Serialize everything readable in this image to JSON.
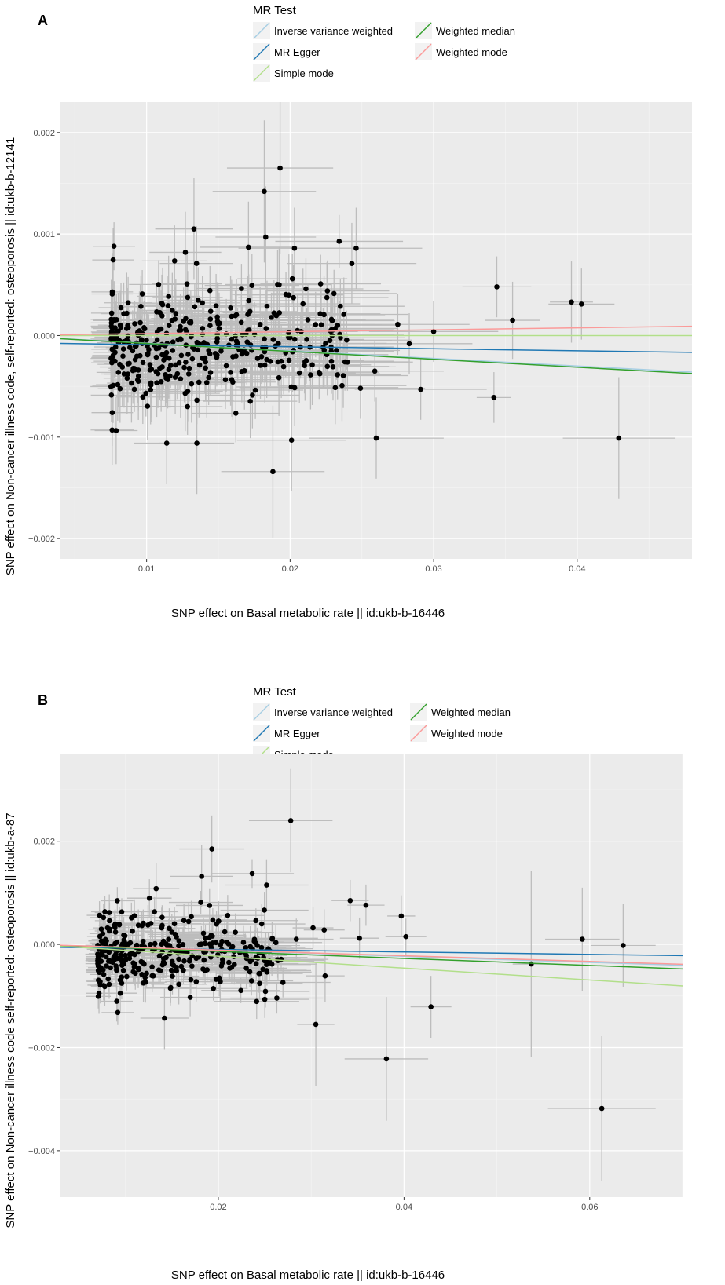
{
  "chart_data": [
    {
      "type": "scatter",
      "panel": "A",
      "xlabel": "SNP effect on Basal metabolic rate || id:ukb-b-16446",
      "ylabel": "SNP effect on Non-cancer illness code, self-reported: osteoporosis || id:ukb-b-12141",
      "xlim": [
        0.004,
        0.048
      ],
      "ylim": [
        -0.0022,
        0.0023
      ],
      "xticks": [
        0.01,
        0.02,
        0.03,
        0.04
      ],
      "xtick_labels": [
        "0.01",
        "0.02",
        "0.03",
        "0.04"
      ],
      "yticks": [
        -0.002,
        -0.001,
        0.0,
        0.001,
        0.002
      ],
      "ytick_labels": [
        "-0.002",
        "-0.001",
        "0.000",
        "0.001",
        "0.002"
      ],
      "legend": {
        "title": "MR Test",
        "entries": [
          {
            "name": "Inverse variance weighted",
            "color": "#a6cee3"
          },
          {
            "name": "MR Egger",
            "color": "#1f78b4"
          },
          {
            "name": "Simple mode",
            "color": "#b2df8a"
          },
          {
            "name": "Weighted median",
            "color": "#33a02c"
          },
          {
            "name": "Weighted mode",
            "color": "#fb9a99"
          }
        ]
      },
      "lines": [
        {
          "name": "Inverse variance weighted",
          "color": "#a6cee3",
          "intercept": 0.0,
          "slope": -0.0075
        },
        {
          "name": "MR Egger",
          "color": "#1f78b4",
          "intercept": -7e-05,
          "slope": -0.002
        },
        {
          "name": "Simple mode",
          "color": "#b2df8a",
          "intercept": 0.0,
          "slope": 0.0
        },
        {
          "name": "Weighted median",
          "color": "#33a02c",
          "intercept": 0.0,
          "slope": -0.0078
        },
        {
          "name": "Weighted mode",
          "color": "#fb9a99",
          "intercept": 0.0,
          "slope": 0.0019
        }
      ],
      "highlight_points": [
        {
          "x": 0.0193,
          "y": 0.00165,
          "xerr": 0.0037,
          "yerr": 0.00085
        },
        {
          "x": 0.0182,
          "y": 0.00142,
          "xerr": 0.0036,
          "yerr": 0.0007
        },
        {
          "x": 0.0133,
          "y": 0.00105,
          "xerr": 0.0027,
          "yerr": 0.0005
        },
        {
          "x": 0.0183,
          "y": 0.00097,
          "xerr": 0.0035,
          "yerr": 0.0005
        },
        {
          "x": 0.0171,
          "y": 0.00087,
          "xerr": 0.0034,
          "yerr": 0.00045
        },
        {
          "x": 0.0203,
          "y": 0.00086,
          "xerr": 0.0039,
          "yerr": 0.0004
        },
        {
          "x": 0.0246,
          "y": 0.00086,
          "xerr": 0.0046,
          "yerr": 0.0004
        },
        {
          "x": 0.0127,
          "y": 0.00082,
          "xerr": 0.0025,
          "yerr": 0.0004
        },
        {
          "x": 0.0243,
          "y": 0.00071,
          "xerr": 0.0045,
          "yerr": 0.0004
        },
        {
          "x": 0.0344,
          "y": 0.00048,
          "xerr": 0.0024,
          "yerr": 0.0003
        },
        {
          "x": 0.0396,
          "y": 0.00033,
          "xerr": 0.0015,
          "yerr": 0.0004
        },
        {
          "x": 0.0403,
          "y": 0.00031,
          "xerr": 0.0023,
          "yerr": 0.00035
        },
        {
          "x": 0.0355,
          "y": 0.00015,
          "xerr": 0.0019,
          "yerr": 0.00038
        },
        {
          "x": 0.03,
          "y": 4e-05,
          "xerr": 0.0045,
          "yerr": 0.0003
        },
        {
          "x": 0.0283,
          "y": -8e-05,
          "xerr": 0.0044,
          "yerr": 0.0003
        },
        {
          "x": 0.0249,
          "y": -0.00052,
          "xerr": 0.0045,
          "yerr": 0.0003
        },
        {
          "x": 0.0291,
          "y": -0.00053,
          "xerr": 0.0046,
          "yerr": 0.0003
        },
        {
          "x": 0.0342,
          "y": -0.00061,
          "xerr": 0.0012,
          "yerr": 0.00025
        },
        {
          "x": 0.026,
          "y": -0.00101,
          "xerr": 0.0047,
          "yerr": 0.0004
        },
        {
          "x": 0.0429,
          "y": -0.00101,
          "xerr": 0.0039,
          "yerr": 0.0006
        },
        {
          "x": 0.0188,
          "y": -0.00134,
          "xerr": 0.0036,
          "yerr": 0.00065
        },
        {
          "x": 0.0201,
          "y": -0.00103,
          "xerr": 0.0038,
          "yerr": 0.0005
        },
        {
          "x": 0.0114,
          "y": -0.00106,
          "xerr": 0.0023,
          "yerr": 0.0004
        },
        {
          "x": 0.0076,
          "y": -0.00093,
          "xerr": 0.0015,
          "yerr": 0.00035
        },
        {
          "x": 0.0135,
          "y": -0.00106,
          "xerr": 0.0026,
          "yerr": 0.0005
        },
        {
          "x": 0.0259,
          "y": -0.00035,
          "xerr": 0.0048,
          "yerr": 0.0003
        },
        {
          "x": 0.0275,
          "y": 0.00011,
          "xerr": 0.005,
          "yerr": 0.0003
        },
        {
          "x": 0.0211,
          "y": 0.00046,
          "xerr": 0.004,
          "yerr": 0.0003
        },
        {
          "x": 0.0226,
          "y": 0.00044,
          "xerr": 0.0043,
          "yerr": 0.0003
        }
      ],
      "cluster": {
        "n": 380,
        "x_range": [
          0.0075,
          0.024
        ],
        "y_mean": -8e-05,
        "y_sd": 0.00027,
        "seed": 11
      }
    },
    {
      "type": "scatter",
      "panel": "B",
      "xlabel": "SNP effect on Basal metabolic rate || id:ukb-b-16446",
      "ylabel": "SNP effect on Non-cancer illness code  self-reported: osteoporosis || id:ukb-a-87",
      "xlim": [
        0.003,
        0.07
      ],
      "ylim": [
        -0.0049,
        0.0037
      ],
      "xticks": [
        0.02,
        0.04,
        0.06
      ],
      "xtick_labels": [
        "0.02",
        "0.04",
        "0.06"
      ],
      "yticks": [
        -0.004,
        -0.002,
        0.0,
        0.002
      ],
      "ytick_labels": [
        "-0.004",
        "-0.002",
        "0.000",
        "0.002"
      ],
      "legend": {
        "title": "MR Test",
        "entries": [
          {
            "name": "Inverse variance weighted",
            "color": "#a6cee3"
          },
          {
            "name": "MR Egger",
            "color": "#1f78b4"
          },
          {
            "name": "Simple mode",
            "color": "#b2df8a"
          },
          {
            "name": "Weighted median",
            "color": "#33a02c"
          },
          {
            "name": "Weighted mode",
            "color": "#fb9a99"
          }
        ]
      },
      "lines": [
        {
          "name": "Inverse variance weighted",
          "color": "#a6cee3",
          "intercept": 0.0,
          "slope": -0.0058
        },
        {
          "name": "MR Egger",
          "color": "#1f78b4",
          "intercept": -5e-05,
          "slope": -0.0024
        },
        {
          "name": "Simple mode",
          "color": "#b2df8a",
          "intercept": 0.0,
          "slope": -0.0115
        },
        {
          "name": "Weighted median",
          "color": "#33a02c",
          "intercept": 0.0,
          "slope": -0.0068
        },
        {
          "name": "Weighted mode",
          "color": "#fb9a99",
          "intercept": 0.0,
          "slope": -0.0055
        }
      ],
      "highlight_points": [
        {
          "x": 0.0278,
          "y": 0.0024,
          "xerr": 0.0045,
          "yerr": 0.001
        },
        {
          "x": 0.0193,
          "y": 0.00185,
          "xerr": 0.0035,
          "yerr": 0.00065
        },
        {
          "x": 0.0182,
          "y": 0.00132,
          "xerr": 0.0034,
          "yerr": 0.0006
        },
        {
          "x": 0.0252,
          "y": 0.00115,
          "xerr": 0.0045,
          "yerr": 0.0005
        },
        {
          "x": 0.0133,
          "y": 0.00108,
          "xerr": 0.0025,
          "yerr": 0.0005
        },
        {
          "x": 0.0342,
          "y": 0.00085,
          "xerr": 0.002,
          "yerr": 0.0004
        },
        {
          "x": 0.0359,
          "y": 0.00076,
          "xerr": 0.002,
          "yerr": 0.0004
        },
        {
          "x": 0.0397,
          "y": 0.00055,
          "xerr": 0.0015,
          "yerr": 0.0004
        },
        {
          "x": 0.0402,
          "y": 0.00015,
          "xerr": 0.0022,
          "yerr": 0.00035
        },
        {
          "x": 0.0352,
          "y": 0.00012,
          "xerr": 0.0021,
          "yerr": 0.0004
        },
        {
          "x": 0.0592,
          "y": 0.0001,
          "xerr": 0.004,
          "yerr": 0.001
        },
        {
          "x": 0.0636,
          "y": -2e-05,
          "xerr": 0.0035,
          "yerr": 0.0008
        },
        {
          "x": 0.0537,
          "y": -0.00038,
          "xerr": 0.002,
          "yerr": 0.0018
        },
        {
          "x": 0.0305,
          "y": -0.00155,
          "xerr": 0.002,
          "yerr": 0.0012
        },
        {
          "x": 0.0429,
          "y": -0.00121,
          "xerr": 0.0022,
          "yerr": 0.0006
        },
        {
          "x": 0.0381,
          "y": -0.00222,
          "xerr": 0.0045,
          "yerr": 0.0012
        },
        {
          "x": 0.0613,
          "y": -0.00318,
          "xerr": 0.0058,
          "yerr": 0.0014
        },
        {
          "x": 0.0142,
          "y": -0.00143,
          "xerr": 0.0026,
          "yerr": 0.0006
        },
        {
          "x": 0.0315,
          "y": -0.00061,
          "xerr": 0.0021,
          "yerr": 0.0005
        },
        {
          "x": 0.0302,
          "y": 0.00032,
          "xerr": 0.0022,
          "yerr": 0.0004
        },
        {
          "x": 0.0314,
          "y": 0.00028,
          "xerr": 0.0022,
          "yerr": 0.0004
        },
        {
          "x": 0.0284,
          "y": 0.0001,
          "xerr": 0.004,
          "yerr": 0.0004
        }
      ],
      "cluster": {
        "n": 330,
        "x_range": [
          0.007,
          0.027
        ],
        "y_mean": -0.0002,
        "y_sd": 0.00037,
        "seed": 29
      }
    }
  ]
}
